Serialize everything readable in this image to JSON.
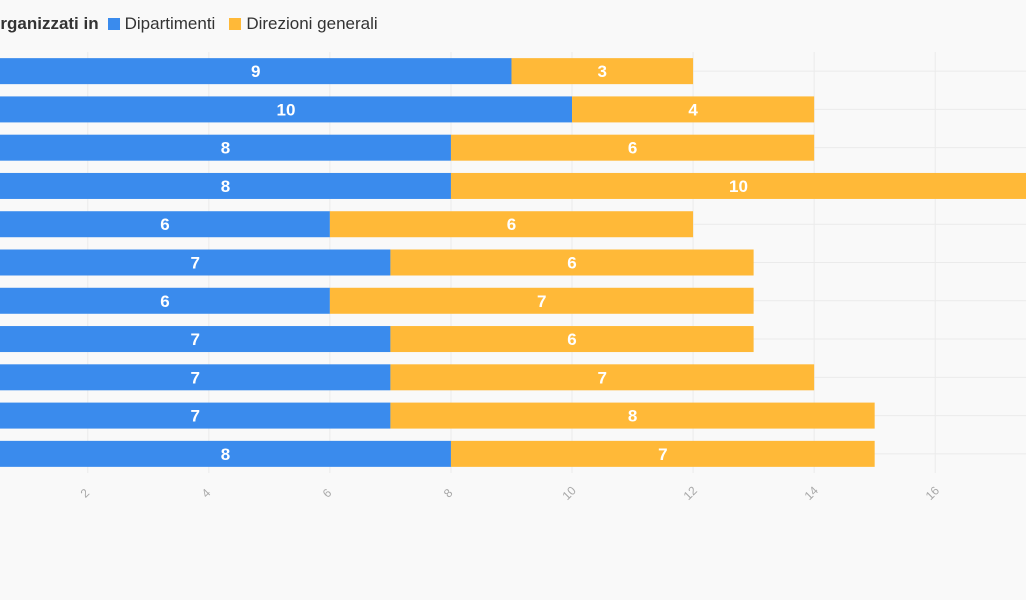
{
  "chart_data": {
    "type": "bar",
    "orientation": "horizontal",
    "stacked": true,
    "legend_title": "organizzati in",
    "legend_position": "top-left",
    "grid": true,
    "series": [
      {
        "name": "Dipartimenti",
        "color": "#3a8bed",
        "values": [
          9,
          10,
          8,
          8,
          6,
          7,
          6,
          7,
          7,
          7,
          8
        ]
      },
      {
        "name": "Direzioni generali",
        "color": "#ffb938",
        "values": [
          3,
          4,
          6,
          10,
          6,
          6,
          7,
          6,
          7,
          8,
          7
        ]
      }
    ],
    "x_ticks": [
      "2",
      "4",
      "6",
      "8",
      "10",
      "12",
      "14",
      "16"
    ],
    "xlim": [
      0.55,
      17.5
    ]
  }
}
